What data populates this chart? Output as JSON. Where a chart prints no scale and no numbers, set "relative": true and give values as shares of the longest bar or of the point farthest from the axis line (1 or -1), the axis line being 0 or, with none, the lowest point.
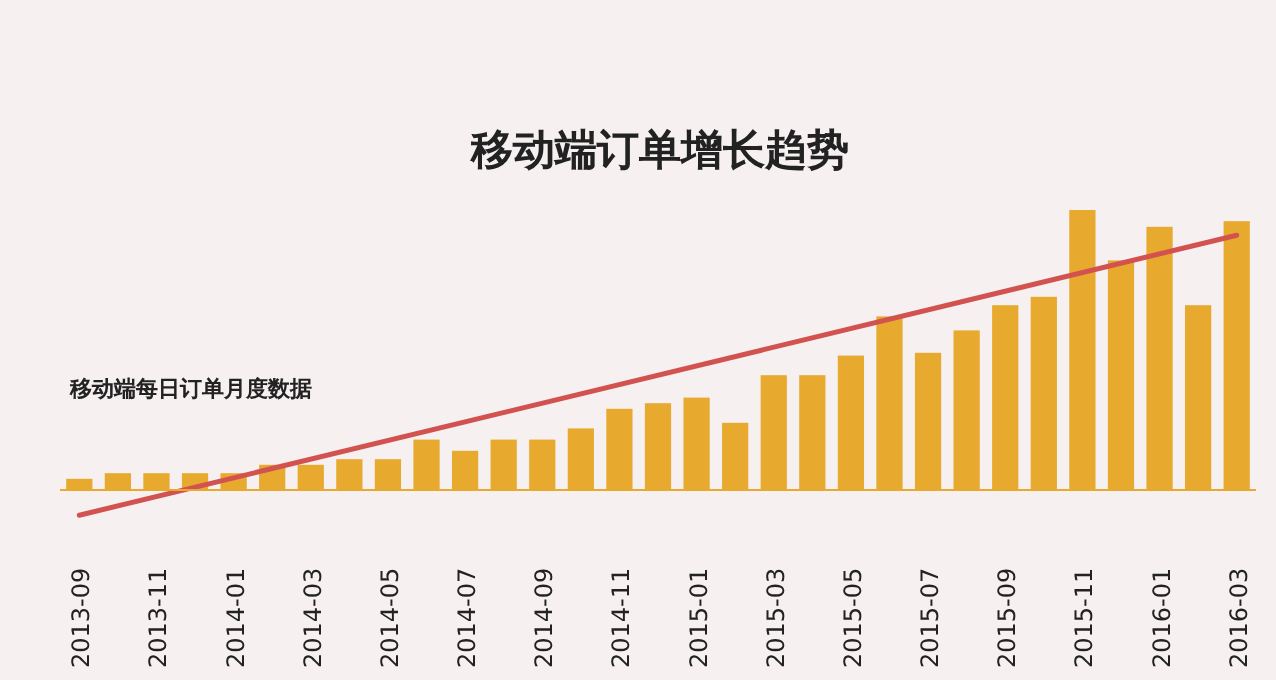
{
  "chart_data": {
    "type": "bar",
    "title": "移动端订单增长趋势",
    "annotations": [
      "移动端每日订单月度数据"
    ],
    "relative": true,
    "ref_lines": [
      {
        "axis": "y",
        "value": 0,
        "color": "#e8a92f"
      }
    ],
    "categories": [
      "2013-09",
      null,
      "2013-11",
      null,
      "2014-01",
      null,
      "2014-03",
      null,
      "2014-05",
      null,
      "2014-07",
      null,
      "2014-09",
      null,
      "2014-11",
      null,
      "2015-01",
      null,
      "2015-03",
      null,
      "2015-05",
      null,
      "2015-07",
      null,
      "2015-09",
      null,
      "2015-11",
      null,
      "2016-01",
      null,
      "2016-03"
    ],
    "series": [
      {
        "color": "#e8a92f",
        "values": [
          0.04,
          0.06,
          0.06,
          0.06,
          0.06,
          0.09,
          0.09,
          0.11,
          0.11,
          0.18,
          0.14,
          0.18,
          0.18,
          0.22,
          0.29,
          0.31,
          0.33,
          0.24,
          0.41,
          0.41,
          0.48,
          0.62,
          0.49,
          0.57,
          0.66,
          0.69,
          1,
          0.82,
          0.94,
          0.66,
          0.96
        ]
      },
      {
        "type": "line",
        "color": "#d2524f",
        "values": [
          -0.09,
          null,
          null,
          null,
          null,
          null,
          null,
          null,
          null,
          null,
          null,
          null,
          null,
          null,
          null,
          null,
          null,
          null,
          null,
          null,
          null,
          null,
          null,
          null,
          null,
          null,
          null,
          null,
          null,
          null,
          0.91
        ]
      }
    ]
  }
}
